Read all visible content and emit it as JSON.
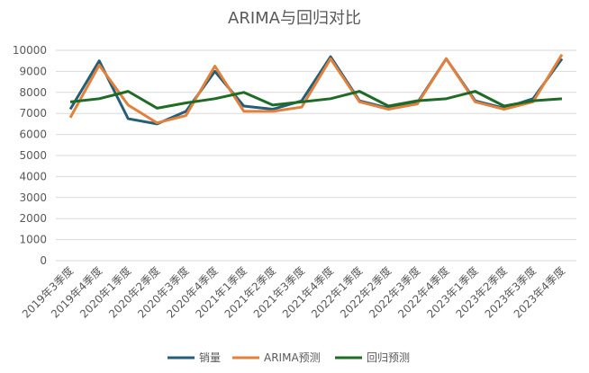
{
  "chart_data": {
    "type": "line",
    "title": "ARIMA与回归对比",
    "categories": [
      "2019年3季度",
      "2019年4季度",
      "2020年1季度",
      "2020年2季度",
      "2020年3季度",
      "2020年4季度",
      "2021年1季度",
      "2021年2季度",
      "2021年3季度",
      "2021年4季度",
      "2022年1季度",
      "2022年2季度",
      "2022年3季度",
      "2022年4季度",
      "2023年1季度",
      "2023年2季度",
      "2023年3季度",
      "2023年4季度"
    ],
    "series": [
      {
        "name": "销量",
        "color": "#255e79",
        "values": [
          7200,
          9500,
          6750,
          6500,
          7100,
          9000,
          7350,
          7200,
          7600,
          9700,
          7600,
          7250,
          7500,
          9600,
          7600,
          7250,
          7700,
          9600
        ]
      },
      {
        "name": "ARIMA预测",
        "color": "#e2803c",
        "values": [
          6800,
          9300,
          7400,
          6550,
          6900,
          9250,
          7100,
          7100,
          7300,
          9600,
          7550,
          7200,
          7450,
          9600,
          7550,
          7200,
          7550,
          9800
        ]
      },
      {
        "name": "回归预测",
        "color": "#1e6b25",
        "values": [
          7550,
          7700,
          8050,
          7250,
          7500,
          7700,
          8000,
          7400,
          7550,
          7700,
          8050,
          7350,
          7600,
          7700,
          8050,
          7350,
          7600,
          7700
        ]
      }
    ],
    "ylim": [
      0,
      10000
    ],
    "yticks": [
      0,
      1000,
      2000,
      3000,
      4000,
      5000,
      6000,
      7000,
      8000,
      9000,
      10000
    ],
    "grid": true,
    "legend": "bottom"
  }
}
